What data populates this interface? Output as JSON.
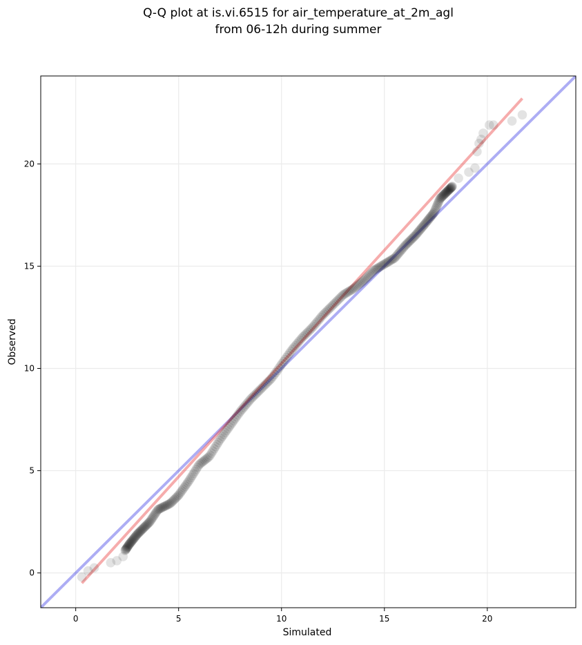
{
  "chart_data": {
    "type": "scatter",
    "title_lines": [
      "Q-Q plot at is.vi.6515 for air_temperature_at_2m_agl",
      "from 06-12h during summer"
    ],
    "xlabel": "Simulated",
    "ylabel": "Observed",
    "xlim": [
      -1.7,
      24.3
    ],
    "ylim": [
      -1.7,
      24.3
    ],
    "xticks": [
      0,
      5,
      10,
      15,
      20
    ],
    "yticks": [
      0,
      5,
      10,
      15,
      20
    ],
    "grid": true,
    "identity_line": {
      "color": "#0000dd",
      "opacity": 0.32
    },
    "fit_line": {
      "x": [
        0.3,
        21.7
      ],
      "y": [
        -0.5,
        23.2
      ],
      "color": "#e83030",
      "opacity": 0.4
    },
    "quantile_knots": {
      "x": [
        0.3,
        1.6,
        2.2,
        2.6,
        3.0,
        3.6,
        4.0,
        4.6,
        5.0,
        5.5,
        6.0,
        6.5,
        7.0,
        7.5,
        8.0,
        8.5,
        9.0,
        9.5,
        9.8,
        10.0,
        10.5,
        11.0,
        11.5,
        12.0,
        12.5,
        13.0,
        13.5,
        14.0,
        14.5,
        15.0,
        15.5,
        16.0,
        16.5,
        17.0,
        17.4,
        17.7,
        18.3,
        19.0,
        19.6,
        20.2,
        21.7
      ],
      "y": [
        -0.2,
        0.5,
        0.8,
        1.4,
        1.9,
        2.5,
        3.1,
        3.4,
        3.8,
        4.5,
        5.3,
        5.7,
        6.5,
        7.2,
        7.9,
        8.5,
        9.0,
        9.5,
        9.9,
        10.2,
        10.9,
        11.5,
        12.0,
        12.6,
        13.1,
        13.6,
        13.9,
        14.3,
        14.8,
        15.1,
        15.4,
        16.0,
        16.5,
        17.1,
        17.6,
        18.3,
        18.9,
        19.5,
        20.5,
        21.9,
        22.4
      ],
      "n_points": 300
    },
    "tail_points": [
      {
        "x": 0.3,
        "y": -0.2
      },
      {
        "x": 0.6,
        "y": 0.1
      },
      {
        "x": 0.9,
        "y": 0.25
      },
      {
        "x": 1.7,
        "y": 0.5
      },
      {
        "x": 2.0,
        "y": 0.6
      },
      {
        "x": 2.3,
        "y": 0.8
      },
      {
        "x": 18.6,
        "y": 19.3
      },
      {
        "x": 19.1,
        "y": 19.6
      },
      {
        "x": 19.4,
        "y": 19.8
      },
      {
        "x": 19.5,
        "y": 20.6
      },
      {
        "x": 19.6,
        "y": 21.0
      },
      {
        "x": 19.7,
        "y": 21.2
      },
      {
        "x": 19.8,
        "y": 21.5
      },
      {
        "x": 20.1,
        "y": 21.9
      },
      {
        "x": 20.3,
        "y": 21.9
      },
      {
        "x": 21.2,
        "y": 22.1
      },
      {
        "x": 21.7,
        "y": 22.4
      }
    ]
  }
}
